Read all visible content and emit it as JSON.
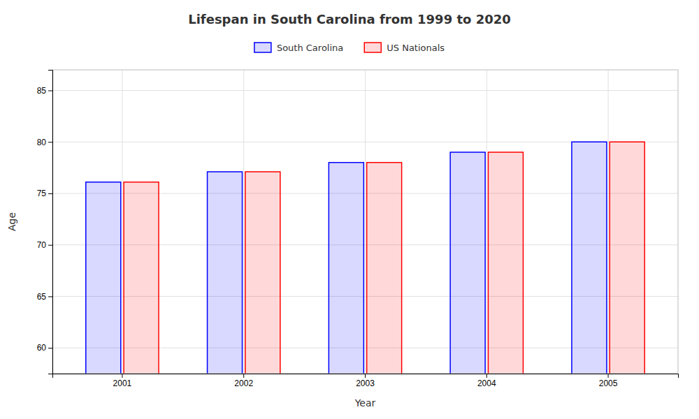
{
  "chart_data": {
    "type": "bar",
    "title": "Lifespan in South Carolina from 1999 to 2020",
    "xlabel": "Year",
    "ylabel": "Age",
    "categories": [
      "2001",
      "2002",
      "2003",
      "2004",
      "2005"
    ],
    "series": [
      {
        "name": "South Carolina",
        "color": "#0000ff",
        "values": [
          76.1,
          77.1,
          78.0,
          79.0,
          80.0
        ]
      },
      {
        "name": "US Nationals",
        "color": "#ff0000",
        "values": [
          76.1,
          77.1,
          78.0,
          79.0,
          80.0
        ]
      }
    ],
    "ylim": [
      57.5,
      87
    ],
    "yticks": [
      60,
      65,
      70,
      75,
      80,
      85
    ],
    "grid": true
  }
}
